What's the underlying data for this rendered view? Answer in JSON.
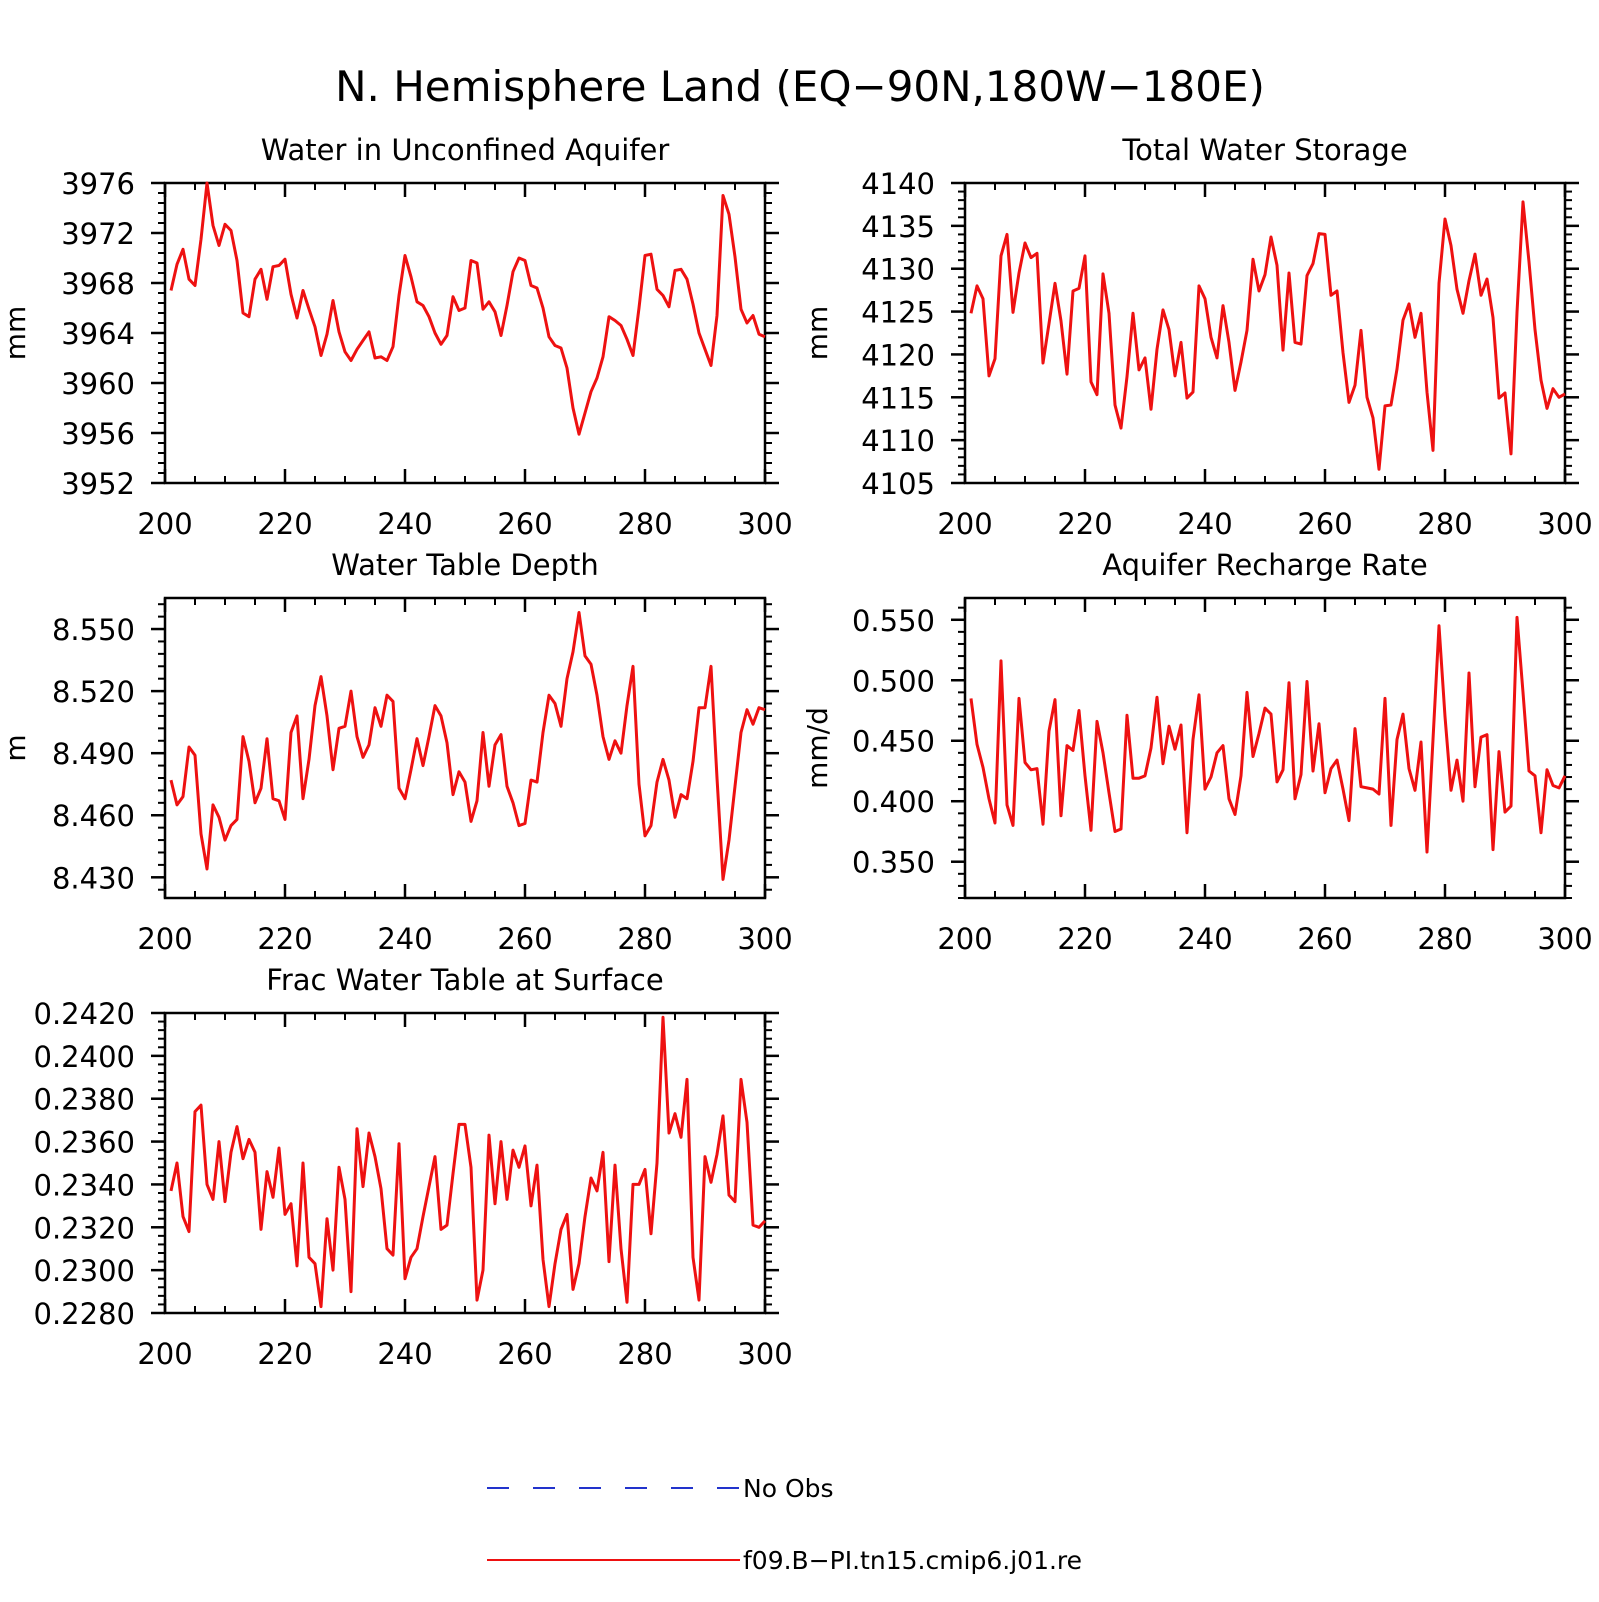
{
  "figure": {
    "title": "N. Hemisphere Land (EQ−90N,180W−180E)"
  },
  "legend": {
    "items": [
      {
        "label": "No Obs",
        "color": "#2233cc",
        "style": "dashed"
      },
      {
        "label": "f09.B−PI.tn15.cmip6.j01.re",
        "color": "#ee1111",
        "style": "solid"
      }
    ]
  },
  "chart_data": [
    {
      "type": "line",
      "title": "Water in Unconfined Aquifer",
      "ylabel": "mm",
      "xlim": [
        200,
        300
      ],
      "ylim": [
        3952,
        3976
      ],
      "xticks": [
        "200",
        "220",
        "240",
        "260",
        "280",
        "300"
      ],
      "yticks": [
        "3952",
        "3956",
        "3960",
        "3964",
        "3968",
        "3972",
        "3976"
      ],
      "series": [
        {
          "name": "f09.B−PI.tn15.cmip6.j01.re",
          "color": "#ee1111",
          "x0": 201,
          "values": [
            3967.4,
            3969.5,
            3970.7,
            3968.3,
            3967.8,
            3971.5,
            3976.0,
            3972.6,
            3971.0,
            3972.7,
            3972.2,
            3969.8,
            3965.6,
            3965.3,
            3968.3,
            3969.1,
            3966.7,
            3969.3,
            3969.4,
            3969.9,
            3967.1,
            3965.2,
            3967.4,
            3965.9,
            3964.5,
            3962.2,
            3963.9,
            3966.6,
            3964.1,
            3962.5,
            3961.8,
            3962.7,
            3963.4,
            3964.1,
            3962.0,
            3962.1,
            3961.8,
            3962.9,
            3967.0,
            3970.2,
            3968.5,
            3966.5,
            3966.2,
            3965.3,
            3964.0,
            3963.1,
            3963.8,
            3966.9,
            3965.8,
            3966.0,
            3969.8,
            3969.6,
            3965.9,
            3966.5,
            3965.7,
            3963.8,
            3966.2,
            3968.9,
            3970.0,
            3969.8,
            3967.8,
            3967.6,
            3966.0,
            3963.7,
            3963.0,
            3962.8,
            3961.2,
            3958.0,
            3955.9,
            3957.6,
            3959.3,
            3960.4,
            3962.1,
            3965.3,
            3965.0,
            3964.6,
            3963.5,
            3962.2,
            3966.0,
            3970.2,
            3970.3,
            3967.5,
            3967.0,
            3966.1,
            3969.0,
            3969.1,
            3968.3,
            3966.3,
            3964.0,
            3962.7,
            3961.4,
            3965.4,
            3975.0,
            3973.5,
            3970.1,
            3965.9,
            3964.8,
            3965.4,
            3963.9,
            3963.7
          ]
        }
      ]
    },
    {
      "type": "line",
      "title": "Total Water Storage",
      "ylabel": "mm",
      "xlim": [
        200,
        300
      ],
      "ylim": [
        4105,
        4140
      ],
      "xticks": [
        "200",
        "220",
        "240",
        "260",
        "280",
        "300"
      ],
      "yticks": [
        "4105",
        "4110",
        "4115",
        "4120",
        "4125",
        "4130",
        "4135",
        "4140"
      ],
      "series": [
        {
          "name": "f09.B−PI.tn15.cmip6.j01.re",
          "color": "#ee1111",
          "x0": 201,
          "values": [
            4124.8,
            4128.0,
            4126.5,
            4117.5,
            4119.5,
            4131.5,
            4134.0,
            4124.9,
            4129.5,
            4133.0,
            4131.3,
            4131.8,
            4119.0,
            4123.6,
            4128.3,
            4123.9,
            4117.7,
            4127.4,
            4127.7,
            4131.5,
            4116.8,
            4115.3,
            4129.4,
            4124.8,
            4114.1,
            4111.4,
            4117.4,
            4124.8,
            4118.2,
            4119.6,
            4113.6,
            4120.6,
            4125.2,
            4122.9,
            4117.5,
            4121.4,
            4114.9,
            4115.6,
            4128.0,
            4126.5,
            4122.0,
            4119.6,
            4125.7,
            4121.4,
            4115.8,
            4119.1,
            4122.8,
            4131.1,
            4127.4,
            4129.3,
            4133.7,
            4130.4,
            4120.5,
            4129.5,
            4121.4,
            4121.2,
            4129.2,
            4130.6,
            4134.1,
            4134.0,
            4126.9,
            4127.4,
            4120.2,
            4114.4,
            4116.4,
            4122.8,
            4115.0,
            4112.6,
            4106.6,
            4114.0,
            4114.1,
            4118.3,
            4124.0,
            4125.9,
            4122.0,
            4124.8,
            4115.6,
            4108.8,
            4128.3,
            4135.8,
            4132.7,
            4127.6,
            4124.8,
            4128.6,
            4131.7,
            4126.9,
            4128.8,
            4124.3,
            4114.9,
            4115.5,
            4108.4,
            4124.9,
            4137.8,
            4130.8,
            4122.9,
            4117.0,
            4113.7,
            4116.0,
            4115.0,
            4115.4
          ]
        }
      ]
    },
    {
      "type": "line",
      "title": "Water Table Depth",
      "ylabel": "m",
      "xlim": [
        200,
        300
      ],
      "ylim": [
        8.42,
        8.565
      ],
      "xticks": [
        "200",
        "220",
        "240",
        "260",
        "280",
        "300"
      ],
      "yticks": [
        "8.430",
        "8.460",
        "8.490",
        "8.520",
        "8.550"
      ],
      "series": [
        {
          "name": "f09.B−PI.tn15.cmip6.j01.re",
          "color": "#ee1111",
          "x0": 201,
          "values": [
            8.477,
            8.465,
            8.469,
            8.493,
            8.489,
            8.451,
            8.434,
            8.465,
            8.459,
            8.448,
            8.455,
            8.458,
            8.498,
            8.486,
            8.466,
            8.473,
            8.497,
            8.468,
            8.467,
            8.458,
            8.5,
            8.508,
            8.468,
            8.487,
            8.513,
            8.527,
            8.508,
            8.482,
            8.502,
            8.503,
            8.52,
            8.498,
            8.488,
            8.494,
            8.512,
            8.503,
            8.518,
            8.515,
            8.473,
            8.468,
            8.482,
            8.497,
            8.484,
            8.498,
            8.513,
            8.508,
            8.495,
            8.47,
            8.481,
            8.476,
            8.457,
            8.467,
            8.5,
            8.474,
            8.494,
            8.499,
            8.474,
            8.466,
            8.455,
            8.456,
            8.477,
            8.476,
            8.5,
            8.518,
            8.514,
            8.503,
            8.526,
            8.539,
            8.558,
            8.537,
            8.533,
            8.518,
            8.498,
            8.487,
            8.496,
            8.49,
            8.513,
            8.532,
            8.475,
            8.45,
            8.455,
            8.476,
            8.487,
            8.477,
            8.459,
            8.47,
            8.468,
            8.486,
            8.512,
            8.512,
            8.532,
            8.478,
            8.429,
            8.448,
            8.474,
            8.5,
            8.511,
            8.504,
            8.512,
            8.511
          ]
        }
      ]
    },
    {
      "type": "line",
      "title": "Aquifer Recharge Rate",
      "ylabel": "mm/d",
      "xlim": [
        200,
        300
      ],
      "ylim": [
        0.32,
        0.568
      ],
      "xticks": [
        "200",
        "220",
        "240",
        "260",
        "280",
        "300"
      ],
      "yticks": [
        "0.350",
        "0.400",
        "0.450",
        "0.500",
        "0.550"
      ],
      "series": [
        {
          "name": "f09.B−PI.tn15.cmip6.j01.re",
          "color": "#ee1111",
          "x0": 201,
          "values": [
            0.485,
            0.447,
            0.428,
            0.402,
            0.382,
            0.516,
            0.397,
            0.38,
            0.485,
            0.432,
            0.426,
            0.427,
            0.381,
            0.458,
            0.484,
            0.388,
            0.446,
            0.442,
            0.475,
            0.421,
            0.376,
            0.466,
            0.44,
            0.407,
            0.375,
            0.377,
            0.471,
            0.419,
            0.419,
            0.421,
            0.444,
            0.486,
            0.431,
            0.462,
            0.443,
            0.463,
            0.374,
            0.451,
            0.488,
            0.41,
            0.42,
            0.44,
            0.446,
            0.402,
            0.389,
            0.421,
            0.49,
            0.437,
            0.456,
            0.477,
            0.472,
            0.416,
            0.426,
            0.498,
            0.402,
            0.422,
            0.499,
            0.425,
            0.464,
            0.407,
            0.427,
            0.434,
            0.41,
            0.384,
            0.46,
            0.412,
            0.411,
            0.41,
            0.406,
            0.485,
            0.38,
            0.451,
            0.472,
            0.427,
            0.409,
            0.449,
            0.358,
            0.451,
            0.545,
            0.47,
            0.409,
            0.434,
            0.4,
            0.506,
            0.412,
            0.453,
            0.455,
            0.36,
            0.441,
            0.391,
            0.396,
            0.552,
            0.49,
            0.425,
            0.421,
            0.374,
            0.426,
            0.413,
            0.411,
            0.421
          ]
        }
      ]
    },
    {
      "type": "line",
      "title": "Frac Water Table at Surface",
      "ylabel": "",
      "xlim": [
        200,
        300
      ],
      "ylim": [
        0.228,
        0.242
      ],
      "xticks": [
        "200",
        "220",
        "240",
        "260",
        "280",
        "300"
      ],
      "yticks": [
        "0.2280",
        "0.2300",
        "0.2320",
        "0.2340",
        "0.2360",
        "0.2380",
        "0.2400",
        "0.2420"
      ],
      "series": [
        {
          "name": "f09.B−PI.tn15.cmip6.j01.re",
          "color": "#ee1111",
          "x0": 201,
          "values": [
            0.2337,
            0.235,
            0.2325,
            0.2318,
            0.2374,
            0.2377,
            0.234,
            0.2333,
            0.236,
            0.2332,
            0.2355,
            0.2367,
            0.2352,
            0.2361,
            0.2355,
            0.2319,
            0.2346,
            0.2334,
            0.2357,
            0.2326,
            0.2331,
            0.2302,
            0.235,
            0.2306,
            0.2303,
            0.2283,
            0.2324,
            0.23,
            0.2348,
            0.2333,
            0.229,
            0.2366,
            0.2339,
            0.2364,
            0.2353,
            0.2338,
            0.231,
            0.2307,
            0.2359,
            0.2296,
            0.2306,
            0.231,
            0.2325,
            0.2339,
            0.2353,
            0.2319,
            0.2321,
            0.2345,
            0.2368,
            0.2368,
            0.2348,
            0.2286,
            0.23,
            0.2363,
            0.2331,
            0.236,
            0.2333,
            0.2356,
            0.2348,
            0.2358,
            0.233,
            0.2349,
            0.2305,
            0.2283,
            0.2303,
            0.2319,
            0.2326,
            0.2291,
            0.2303,
            0.2325,
            0.2343,
            0.2337,
            0.2355,
            0.2304,
            0.2349,
            0.231,
            0.2285,
            0.234,
            0.234,
            0.2347,
            0.2317,
            0.235,
            0.2418,
            0.2364,
            0.2373,
            0.2362,
            0.2389,
            0.2306,
            0.2286,
            0.2353,
            0.2341,
            0.2354,
            0.2372,
            0.2335,
            0.2332,
            0.2389,
            0.2369,
            0.2321,
            0.232,
            0.2323
          ]
        }
      ]
    }
  ]
}
